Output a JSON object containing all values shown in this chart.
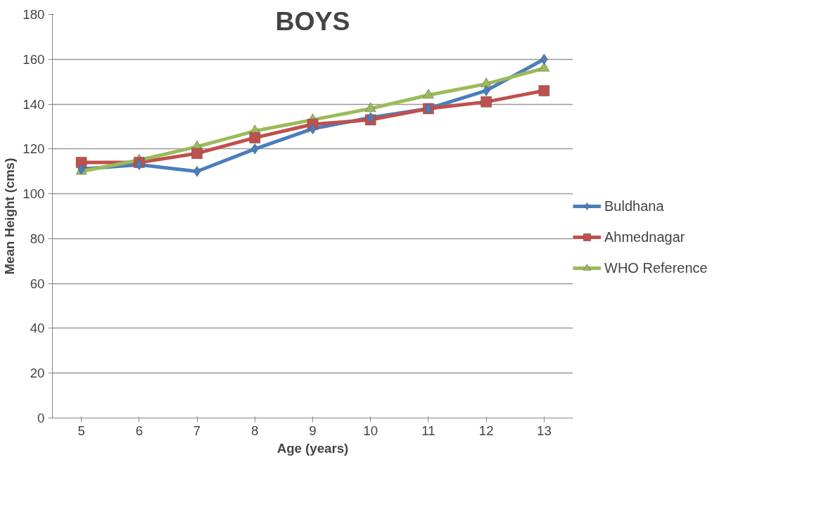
{
  "chart_data": {
    "type": "line",
    "title": "BOYS",
    "xlabel": "Age (years)",
    "ylabel": "Mean Height (cms)",
    "categories": [
      "5",
      "6",
      "7",
      "8",
      "9",
      "10",
      "11",
      "12",
      "13"
    ],
    "series": [
      {
        "name": "Buldhana",
        "color": "#4a7ebb",
        "marker": "diamond",
        "values": [
          111,
          113,
          110,
          120,
          129,
          134,
          138,
          146,
          160
        ]
      },
      {
        "name": "Ahmednagar",
        "color": "#c0504d",
        "marker": "square",
        "values": [
          114,
          114,
          118,
          125,
          131,
          133,
          138,
          141,
          146
        ]
      },
      {
        "name": "WHO Reference",
        "color": "#9bbb59",
        "marker": "triangle",
        "values": [
          110,
          115,
          121,
          128,
          133,
          138,
          144,
          149,
          156
        ]
      }
    ],
    "ylim": [
      0,
      180
    ],
    "yticks": [
      0,
      20,
      40,
      60,
      80,
      100,
      120,
      140,
      160,
      180
    ],
    "grid": "y",
    "legend": "right",
    "line_style": "solid"
  }
}
